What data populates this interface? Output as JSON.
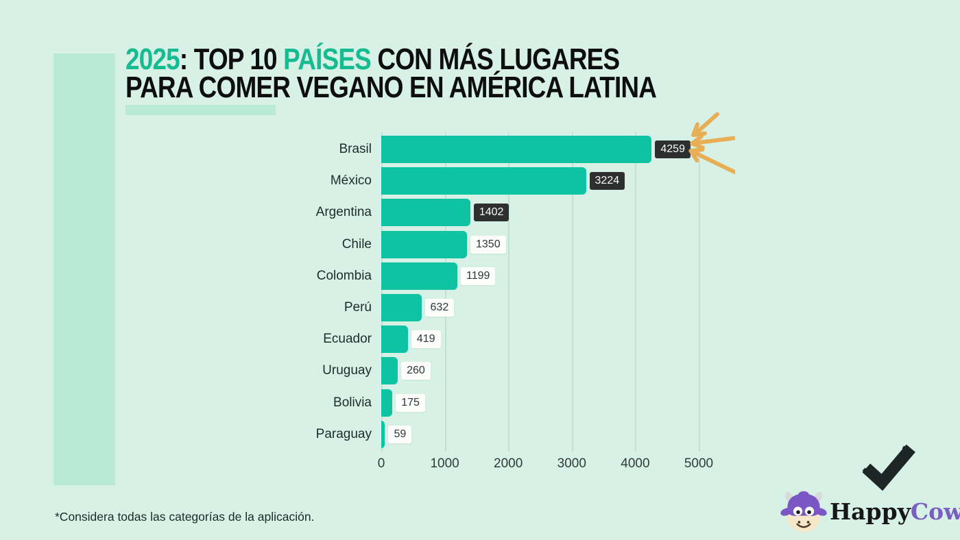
{
  "title": {
    "parts_line1": [
      {
        "text": "2025",
        "accent": true
      },
      {
        "text": ": TOP 10 ",
        "accent": false
      },
      {
        "text": "PAÍSES",
        "accent": true
      },
      {
        "text": " CON MÁS LUGARES",
        "accent": false
      }
    ],
    "line2": "PARA COMER VEGANO EN AMÉRICA LATINA"
  },
  "chart_data": {
    "type": "bar",
    "orientation": "horizontal",
    "title": "2025: Top 10 países con más lugares para comer vegano en América Latina",
    "categories": [
      "Brasil",
      "México",
      "Argentina",
      "Chile",
      "Colombia",
      "Perú",
      "Ecuador",
      "Uruguay",
      "Bolivia",
      "Paraguay"
    ],
    "values": [
      4259,
      3224,
      1402,
      1350,
      1199,
      632,
      419,
      260,
      175,
      59
    ],
    "value_labels": [
      "4259",
      "3224",
      "1402",
      "1350",
      "1199",
      "632",
      "419",
      "260",
      "175",
      "59"
    ],
    "xticks": [
      0,
      1000,
      2000,
      3000,
      4000,
      5000
    ],
    "xlim": [
      0,
      5000
    ],
    "xlabel": "",
    "ylabel": "",
    "grid": "vertical",
    "legend": false,
    "dark_value_label_count": 3
  },
  "footnote": "*Considera todas las categorías de la aplicación.",
  "logo": {
    "word1": "Happy",
    "word2": "Cow"
  },
  "colors": {
    "background": "#d7f1e6",
    "panel": "#b8ead7",
    "bar": "#0dc3a1",
    "title_accent": "#17bb92",
    "title_dark": "#0e0e0e",
    "dark_value_box": "#2e302f",
    "light_value_box": "#fdfdfc",
    "arrow": "#e8ae55",
    "checkmark": "#1d2525",
    "logo_purple": "#7a5ec2",
    "logo_black": "#171717"
  }
}
